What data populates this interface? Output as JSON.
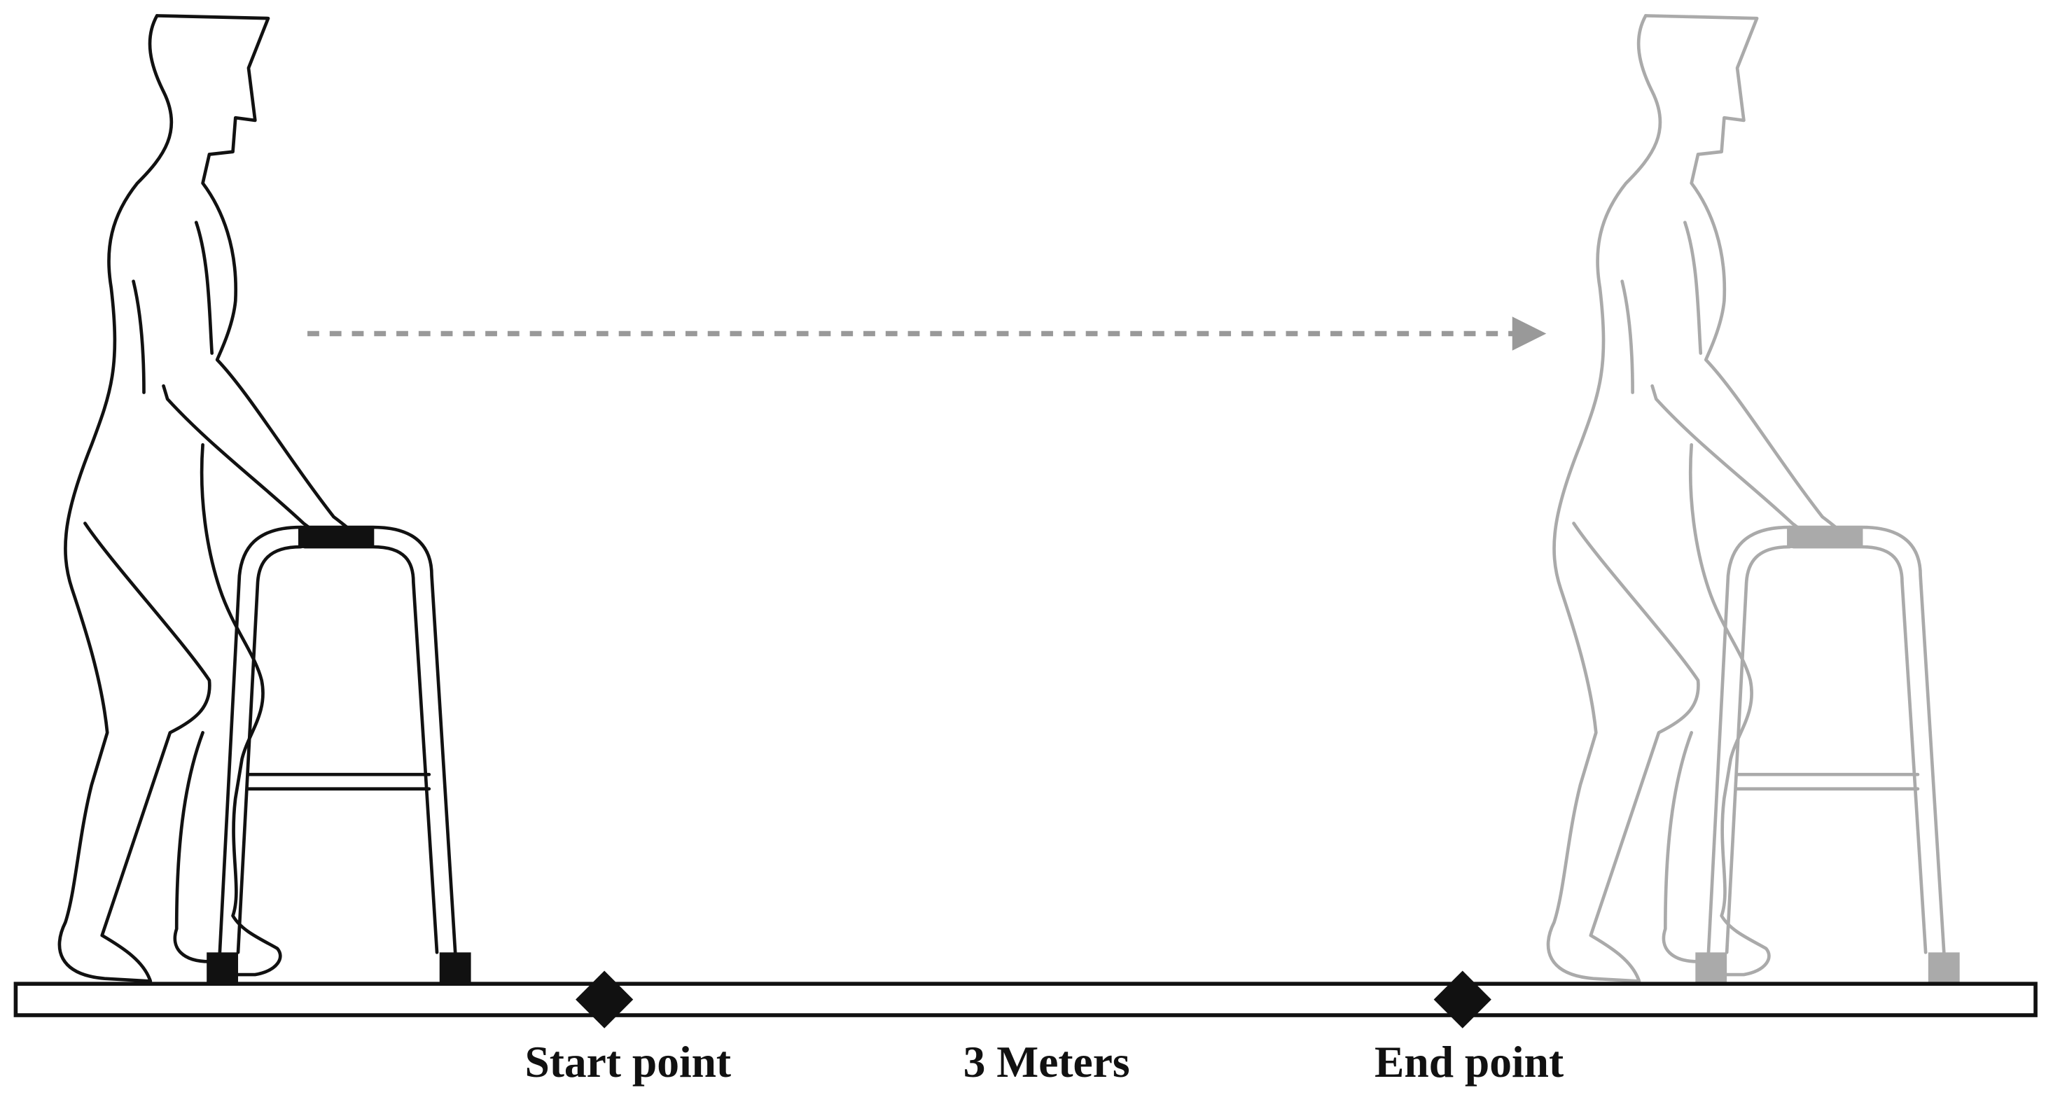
{
  "labels": {
    "start": "Start point",
    "distance": "3 Meters",
    "end": "End point"
  }
}
